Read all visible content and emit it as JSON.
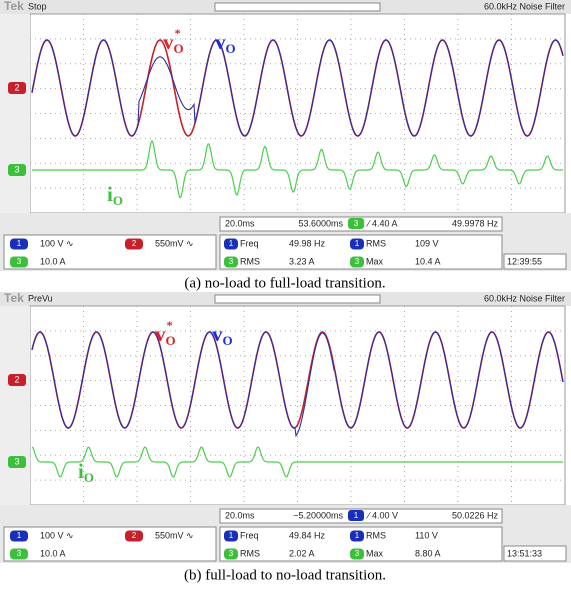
{
  "panels": [
    {
      "brand": "Tek",
      "mode": "Stop",
      "status": "60.0kHz  Noise Filter",
      "trace_labels": {
        "ref": {
          "main": "v",
          "sub": "O",
          "sup": "*"
        },
        "out": {
          "main": "v",
          "sub": "O"
        },
        "cur": {
          "main": "i",
          "sub": "O"
        }
      },
      "markers": [
        "2",
        "3"
      ],
      "timebase": "20.0ms",
      "position": "53.6000ms",
      "trigger_source": "3",
      "trigger_level": "∕ 4.40 A",
      "trigger_freq": "49.9978 Hz",
      "channels": [
        {
          "badge": "1",
          "scale": "100 V ∿"
        },
        {
          "badge": "2",
          "scale": "550mV ∿"
        },
        {
          "badge": "3",
          "scale": "10.0 A"
        }
      ],
      "measurements": [
        {
          "badge": "1",
          "name": "Freq",
          "value": "49.98 Hz"
        },
        {
          "badge": "1",
          "name": "RMS",
          "value": "109 V"
        },
        {
          "badge": "3",
          "name": "RMS",
          "value": "3.23 A"
        },
        {
          "badge": "3",
          "name": "Max",
          "value": "10.4 A"
        }
      ],
      "clock": "12:39:55",
      "caption": "(a)     no-load to full-load transition."
    },
    {
      "brand": "Tek",
      "mode": "PreVu",
      "status": "60.0kHz  Noise Filter",
      "trace_labels": {
        "ref": {
          "main": "v",
          "sub": "O",
          "sup": "*"
        },
        "out": {
          "main": "v",
          "sub": "O"
        },
        "cur": {
          "main": "i",
          "sub": "O"
        }
      },
      "markers": [
        "2",
        "3"
      ],
      "timebase": "20.0ms",
      "position": "−5.20000ms",
      "trigger_source": "1",
      "trigger_level": "∕ 4.00 V",
      "trigger_freq": "50.0226 Hz",
      "channels": [
        {
          "badge": "1",
          "scale": "100 V ∿"
        },
        {
          "badge": "2",
          "scale": "550mV ∿"
        },
        {
          "badge": "3",
          "scale": "10.0 A"
        }
      ],
      "measurements": [
        {
          "badge": "1",
          "name": "Freq",
          "value": "49.84 Hz"
        },
        {
          "badge": "1",
          "name": "RMS",
          "value": "110 V"
        },
        {
          "badge": "3",
          "name": "RMS",
          "value": "2.02 A"
        },
        {
          "badge": "3",
          "name": "Max",
          "value": "8.80 A"
        }
      ],
      "clock": "13:51:33",
      "caption": "(b)     full-load to no-load transition."
    }
  ]
}
